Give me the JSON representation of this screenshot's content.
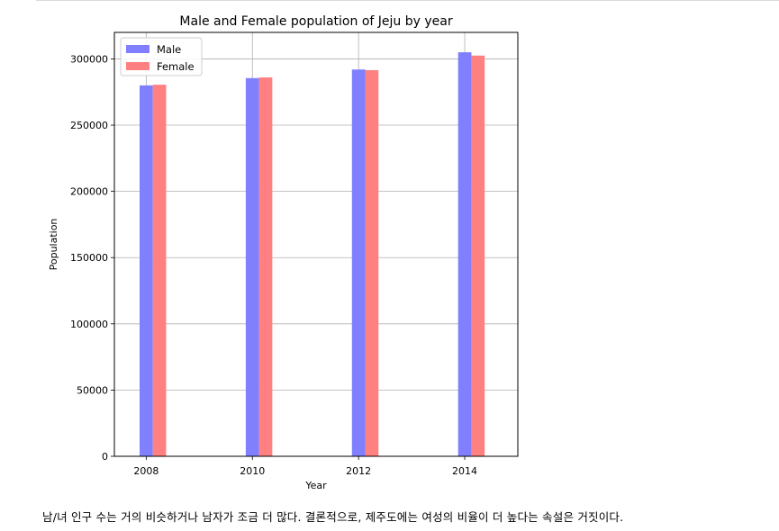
{
  "chart_data": {
    "type": "bar",
    "title": "Male and Female population of Jeju by year",
    "xlabel": "Year",
    "ylabel": "Population",
    "categories": [
      2008,
      2010,
      2012,
      2014
    ],
    "xlim": [
      2007.4,
      2015.0
    ],
    "ylim": [
      0,
      320000
    ],
    "x_ticks": [
      2008,
      2010,
      2012,
      2014
    ],
    "y_ticks": [
      0,
      50000,
      100000,
      150000,
      200000,
      250000,
      300000
    ],
    "grid": true,
    "legend_position": "top-left",
    "series": [
      {
        "name": "Male",
        "color": "#8080ff",
        "values": [
          280000,
          285500,
          292000,
          305000
        ]
      },
      {
        "name": "Female",
        "color": "#ff8080",
        "values": [
          280500,
          286000,
          291500,
          302500
        ]
      }
    ]
  },
  "caption": "남/녀 인구 수는 거의 비슷하거나 남자가 조금 더 많다. 결론적으로, 제주도에는 여성의 비율이 더 높다는 속설은 거짓이다."
}
